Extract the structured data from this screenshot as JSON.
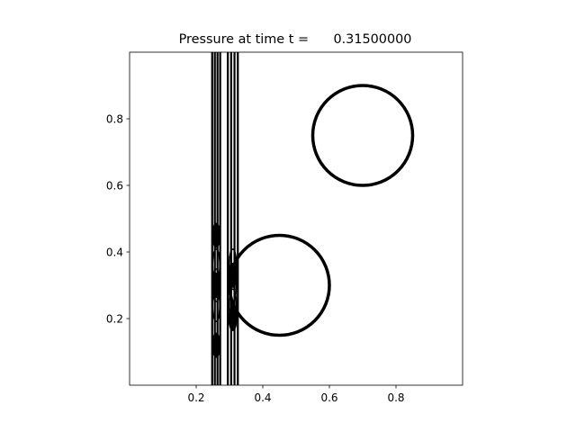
{
  "chart_data": {
    "type": "contour",
    "title": "Pressure at time t =      0.31500000",
    "xlabel": "",
    "ylabel": "",
    "xlim": [
      0.0,
      1.0
    ],
    "ylim": [
      0.0,
      1.0
    ],
    "aspect": "equal",
    "grid": false,
    "legend": "none",
    "line_color": "#000000",
    "x_ticks": [
      {
        "value": 0.2,
        "label": "0.2"
      },
      {
        "value": 0.4,
        "label": "0.4"
      },
      {
        "value": 0.6,
        "label": "0.6"
      },
      {
        "value": 0.8,
        "label": "0.8"
      }
    ],
    "y_ticks": [
      {
        "value": 0.2,
        "label": "0.2"
      },
      {
        "value": 0.4,
        "label": "0.4"
      },
      {
        "value": 0.6,
        "label": "0.6"
      },
      {
        "value": 0.8,
        "label": "0.8"
      }
    ],
    "obstacles": [
      {
        "center_x": 0.7,
        "center_y": 0.75,
        "radius": 0.15
      },
      {
        "center_x": 0.45,
        "center_y": 0.3,
        "radius": 0.15
      }
    ],
    "shock_front": {
      "x_positions": [
        0.248,
        0.256,
        0.264,
        0.272,
        0.295,
        0.305,
        0.315,
        0.325
      ],
      "y_range": [
        0.0,
        1.0
      ]
    }
  }
}
